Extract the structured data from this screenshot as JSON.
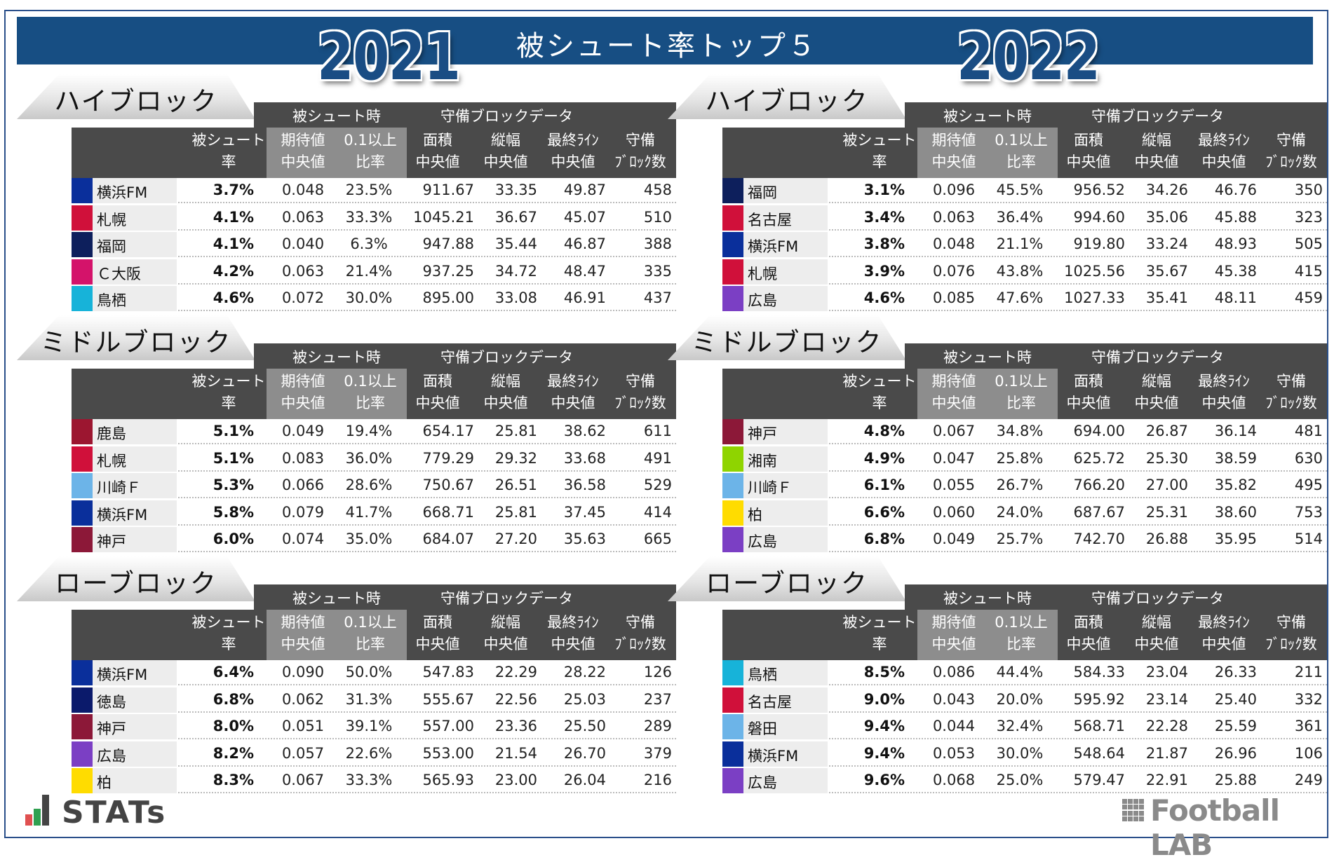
{
  "title": "被シュート率トップ５",
  "years": [
    "2021",
    "2022"
  ],
  "group_labels": {
    "shot": "被シュート時",
    "block": "守備ブロックデータ"
  },
  "headers": [
    [
      "被シュート",
      "率"
    ],
    [
      "期待値",
      "中央値"
    ],
    [
      "0.1以上",
      "比率"
    ],
    [
      "面積",
      "中央値"
    ],
    [
      "縦幅",
      "中央値"
    ],
    [
      "最終ﾗｲﾝ",
      "中央値"
    ],
    [
      "守備",
      "ﾌﾞﾛｯｸ数"
    ]
  ],
  "panels": [
    {
      "year": "2021",
      "sections": [
        {
          "name": "ハイブロック",
          "rows": [
            {
              "team": "横浜FM",
              "color": "#0a2f9b",
              "rate": "3.7%",
              "xg": "0.048",
              "ratio": "23.5%",
              "area": "911.67",
              "depth": "33.35",
              "line": "49.87",
              "count": "458"
            },
            {
              "team": "札幌",
              "color": "#d0103a",
              "rate": "4.1%",
              "xg": "0.063",
              "ratio": "33.3%",
              "area": "1045.21",
              "depth": "36.67",
              "line": "45.07",
              "count": "510"
            },
            {
              "team": "福岡",
              "color": "#0d1f5c",
              "rate": "4.1%",
              "xg": "0.040",
              "ratio": "6.3%",
              "area": "947.88",
              "depth": "35.44",
              "line": "46.87",
              "count": "388"
            },
            {
              "team": "Ｃ大阪",
              "color": "#d4136a",
              "rate": "4.2%",
              "xg": "0.063",
              "ratio": "21.4%",
              "area": "937.25",
              "depth": "34.72",
              "line": "48.47",
              "count": "335"
            },
            {
              "team": "鳥栖",
              "color": "#17b3d9",
              "rate": "4.6%",
              "xg": "0.072",
              "ratio": "30.0%",
              "area": "895.00",
              "depth": "33.08",
              "line": "46.91",
              "count": "437"
            }
          ]
        },
        {
          "name": "ミドルブロック",
          "rows": [
            {
              "team": "鹿島",
              "color": "#9c1630",
              "rate": "5.1%",
              "xg": "0.049",
              "ratio": "19.4%",
              "area": "654.17",
              "depth": "25.81",
              "line": "38.62",
              "count": "611"
            },
            {
              "team": "札幌",
              "color": "#d0103a",
              "rate": "5.1%",
              "xg": "0.083",
              "ratio": "36.0%",
              "area": "779.29",
              "depth": "29.32",
              "line": "33.68",
              "count": "491"
            },
            {
              "team": "川崎Ｆ",
              "color": "#6cb4e8",
              "rate": "5.3%",
              "xg": "0.066",
              "ratio": "28.6%",
              "area": "750.67",
              "depth": "26.51",
              "line": "36.58",
              "count": "529"
            },
            {
              "team": "横浜FM",
              "color": "#0a2f9b",
              "rate": "5.8%",
              "xg": "0.079",
              "ratio": "41.7%",
              "area": "668.71",
              "depth": "25.81",
              "line": "37.45",
              "count": "414"
            },
            {
              "team": "神戸",
              "color": "#8c1838",
              "rate": "6.0%",
              "xg": "0.074",
              "ratio": "35.0%",
              "area": "684.07",
              "depth": "27.20",
              "line": "35.63",
              "count": "665"
            }
          ]
        },
        {
          "name": "ローブロック",
          "rows": [
            {
              "team": "横浜FM",
              "color": "#0a2f9b",
              "rate": "6.4%",
              "xg": "0.090",
              "ratio": "50.0%",
              "area": "547.83",
              "depth": "22.29",
              "line": "28.22",
              "count": "126"
            },
            {
              "team": "徳島",
              "color": "#0b1a6b",
              "rate": "6.8%",
              "xg": "0.062",
              "ratio": "31.3%",
              "area": "555.67",
              "depth": "22.56",
              "line": "25.03",
              "count": "237"
            },
            {
              "team": "神戸",
              "color": "#8c1838",
              "rate": "8.0%",
              "xg": "0.051",
              "ratio": "39.1%",
              "area": "557.00",
              "depth": "23.36",
              "line": "25.50",
              "count": "289"
            },
            {
              "team": "広島",
              "color": "#7b3fc4",
              "rate": "8.2%",
              "xg": "0.057",
              "ratio": "22.6%",
              "area": "553.00",
              "depth": "21.54",
              "line": "26.70",
              "count": "379"
            },
            {
              "team": "柏",
              "color": "#ffdc00",
              "rate": "8.3%",
              "xg": "0.067",
              "ratio": "33.3%",
              "area": "565.93",
              "depth": "23.00",
              "line": "26.04",
              "count": "216"
            }
          ]
        }
      ]
    },
    {
      "year": "2022",
      "sections": [
        {
          "name": "ハイブロック",
          "rows": [
            {
              "team": "福岡",
              "color": "#0d1f5c",
              "rate": "3.1%",
              "xg": "0.096",
              "ratio": "45.5%",
              "area": "956.52",
              "depth": "34.26",
              "line": "46.76",
              "count": "350"
            },
            {
              "team": "名古屋",
              "color": "#d0103a",
              "rate": "3.4%",
              "xg": "0.063",
              "ratio": "36.4%",
              "area": "994.60",
              "depth": "35.06",
              "line": "45.88",
              "count": "323"
            },
            {
              "team": "横浜FM",
              "color": "#0a2f9b",
              "rate": "3.8%",
              "xg": "0.048",
              "ratio": "21.1%",
              "area": "919.80",
              "depth": "33.24",
              "line": "48.93",
              "count": "505"
            },
            {
              "team": "札幌",
              "color": "#d0103a",
              "rate": "3.9%",
              "xg": "0.076",
              "ratio": "43.8%",
              "area": "1025.56",
              "depth": "35.67",
              "line": "45.38",
              "count": "415"
            },
            {
              "team": "広島",
              "color": "#7b3fc4",
              "rate": "4.6%",
              "xg": "0.085",
              "ratio": "47.6%",
              "area": "1027.33",
              "depth": "35.41",
              "line": "48.11",
              "count": "459"
            }
          ]
        },
        {
          "name": "ミドルブロック",
          "rows": [
            {
              "team": "神戸",
              "color": "#8c1838",
              "rate": "4.8%",
              "xg": "0.067",
              "ratio": "34.8%",
              "area": "694.00",
              "depth": "26.87",
              "line": "36.14",
              "count": "481"
            },
            {
              "team": "湘南",
              "color": "#8fd400",
              "rate": "4.9%",
              "xg": "0.047",
              "ratio": "25.8%",
              "area": "625.72",
              "depth": "25.30",
              "line": "38.59",
              "count": "630"
            },
            {
              "team": "川崎Ｆ",
              "color": "#6cb4e8",
              "rate": "6.1%",
              "xg": "0.055",
              "ratio": "26.7%",
              "area": "766.20",
              "depth": "27.00",
              "line": "35.82",
              "count": "495"
            },
            {
              "team": "柏",
              "color": "#ffdc00",
              "rate": "6.6%",
              "xg": "0.060",
              "ratio": "24.0%",
              "area": "687.67",
              "depth": "25.31",
              "line": "38.60",
              "count": "753"
            },
            {
              "team": "広島",
              "color": "#7b3fc4",
              "rate": "6.8%",
              "xg": "0.049",
              "ratio": "25.7%",
              "area": "742.70",
              "depth": "26.88",
              "line": "35.95",
              "count": "514"
            }
          ]
        },
        {
          "name": "ローブロック",
          "rows": [
            {
              "team": "鳥栖",
              "color": "#17b3d9",
              "rate": "8.5%",
              "xg": "0.086",
              "ratio": "44.4%",
              "area": "584.33",
              "depth": "23.04",
              "line": "26.33",
              "count": "211"
            },
            {
              "team": "名古屋",
              "color": "#d0103a",
              "rate": "9.0%",
              "xg": "0.043",
              "ratio": "20.0%",
              "area": "595.92",
              "depth": "23.14",
              "line": "25.40",
              "count": "332"
            },
            {
              "team": "磐田",
              "color": "#6cb4e8",
              "rate": "9.4%",
              "xg": "0.044",
              "ratio": "32.4%",
              "area": "568.71",
              "depth": "22.28",
              "line": "25.59",
              "count": "361"
            },
            {
              "team": "横浜FM",
              "color": "#0a2f9b",
              "rate": "9.4%",
              "xg": "0.053",
              "ratio": "30.0%",
              "area": "548.64",
              "depth": "21.87",
              "line": "26.96",
              "count": "106"
            },
            {
              "team": "広島",
              "color": "#7b3fc4",
              "rate": "9.6%",
              "xg": "0.068",
              "ratio": "25.0%",
              "area": "579.47",
              "depth": "22.91",
              "line": "25.88",
              "count": "249"
            }
          ]
        }
      ]
    }
  ],
  "logos": {
    "left": "STATs",
    "right": "Football LAB"
  },
  "colors": {
    "title_bar": "#174e83",
    "header_dark": "#4a4a4a",
    "header_gray": "#8d8d8d"
  }
}
